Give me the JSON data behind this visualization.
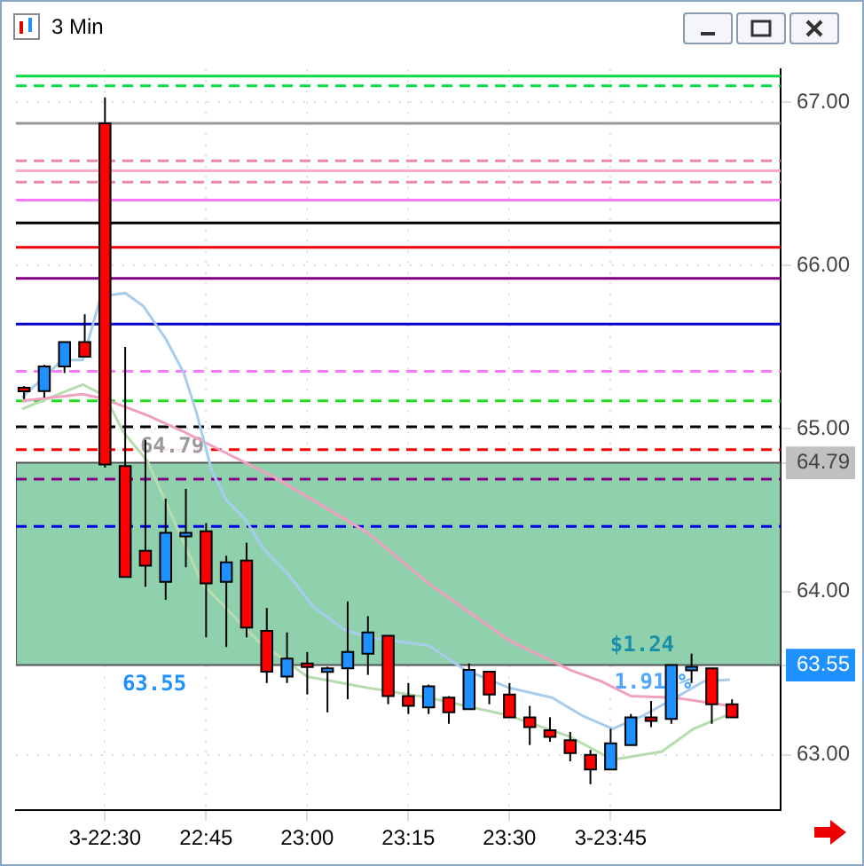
{
  "chart_data": {
    "type": "candlestick",
    "title": "3 Min",
    "x": [
      22.3,
      22.35,
      22.4,
      22.45,
      22.5,
      22.55,
      22.6,
      22.65,
      22.7,
      22.75,
      22.8,
      22.85,
      22.9,
      22.95,
      23,
      23.05,
      23.1,
      23.15,
      23.2,
      23.25,
      23.3,
      23.35,
      23.4,
      23.45,
      23.5,
      23.55,
      23.6,
      23.65,
      23.7,
      23.75,
      23.8,
      23.85,
      23.9,
      23.95,
      24,
      24.05
    ],
    "ohlc": [
      [
        65.25,
        65.26,
        65.18,
        65.23
      ],
      [
        65.23,
        65.39,
        65.19,
        65.38
      ],
      [
        65.38,
        65.53,
        65.34,
        65.53
      ],
      [
        65.53,
        65.7,
        65.44,
        65.44
      ],
      [
        66.87,
        67.03,
        64.76,
        64.78
      ],
      [
        64.77,
        65.5,
        64.09,
        64.09
      ],
      [
        64.25,
        64.93,
        64.03,
        64.16
      ],
      [
        64.06,
        64.57,
        63.95,
        64.36
      ],
      [
        64.35,
        64.63,
        64.15,
        64.36
      ],
      [
        64.37,
        64.42,
        63.72,
        64.05
      ],
      [
        64.06,
        64.22,
        63.66,
        64.18
      ],
      [
        64.19,
        64.3,
        63.72,
        63.78
      ],
      [
        63.76,
        63.9,
        63.44,
        63.51
      ],
      [
        63.48,
        63.75,
        63.44,
        63.59
      ],
      [
        63.56,
        63.63,
        63.37,
        63.54
      ],
      [
        63.51,
        63.54,
        63.26,
        63.53
      ],
      [
        63.53,
        63.94,
        63.34,
        63.63
      ],
      [
        63.62,
        63.85,
        63.49,
        63.75
      ],
      [
        63.73,
        63.73,
        63.31,
        63.36
      ],
      [
        63.36,
        63.44,
        63.25,
        63.3
      ],
      [
        63.29,
        63.43,
        63.25,
        63.42
      ],
      [
        63.35,
        63.36,
        63.19,
        63.26
      ],
      [
        63.28,
        63.56,
        63.28,
        63.52
      ],
      [
        63.51,
        63.51,
        63.31,
        63.37
      ],
      [
        63.37,
        63.44,
        63.23,
        63.23
      ],
      [
        63.23,
        63.3,
        63.06,
        63.17
      ],
      [
        63.15,
        63.23,
        63.08,
        63.11
      ],
      [
        63.09,
        63.14,
        62.96,
        63.01
      ],
      [
        63.0,
        63.03,
        62.82,
        62.91
      ],
      [
        62.91,
        63.16,
        62.91,
        63.07
      ],
      [
        63.06,
        63.25,
        63.06,
        63.23
      ],
      [
        63.23,
        63.33,
        63.17,
        63.22
      ],
      [
        63.22,
        63.55,
        63.19,
        63.55
      ],
      [
        63.53,
        63.62,
        63.44,
        63.54
      ],
      [
        63.53,
        63.53,
        63.19,
        63.31
      ],
      [
        63.31,
        63.34,
        63.23,
        63.23
      ]
    ],
    "colors": [
      "#ff0000",
      "#1e90ff",
      "#1e90ff",
      "#ff0000",
      "#ff0000",
      "#ff0000",
      "#ff0000",
      "#1e90ff",
      "#1e90ff",
      "#ff0000",
      "#1e90ff",
      "#ff0000",
      "#ff0000",
      "#1e90ff",
      "#ff0000",
      "#1e90ff",
      "#1e90ff",
      "#1e90ff",
      "#ff0000",
      "#ff0000",
      "#1e90ff",
      "#ff0000",
      "#1e90ff",
      "#ff0000",
      "#ff0000",
      "#ff0000",
      "#ff0000",
      "#ff0000",
      "#ff0000",
      "#1e90ff",
      "#1e90ff",
      "#ff0000",
      "#1e90ff",
      "#1e90ff",
      "#ff0000",
      "#ff0000"
    ],
    "series": [
      {
        "type": "line",
        "color": "#a8cdec",
        "x": [
          22.295,
          22.395,
          22.445,
          22.49,
          22.55,
          22.595,
          22.65,
          22.695,
          22.727,
          22.764,
          22.8,
          22.845,
          22.89,
          22.955,
          23.014,
          23.09,
          23.15,
          23.3,
          23.39,
          23.5,
          23.605,
          23.68,
          23.755,
          23.83,
          23.91,
          23.98,
          24.045
        ],
        "values": [
          65.19,
          65.42,
          65.42,
          65.81,
          65.83,
          65.75,
          65.55,
          65.34,
          65.09,
          64.74,
          64.56,
          64.45,
          64.27,
          64.1,
          63.91,
          63.77,
          63.72,
          63.67,
          63.52,
          63.41,
          63.35,
          63.24,
          63.16,
          63.24,
          63.35,
          63.45,
          63.46
        ]
      },
      {
        "type": "line",
        "color": "#f0a0c0",
        "x": [
          22.295,
          22.445,
          22.5,
          22.605,
          22.695,
          22.92,
          23.15,
          23.3,
          23.5,
          23.65,
          23.727,
          23.8,
          23.91,
          24.045
        ],
        "values": [
          65.17,
          65.21,
          65.18,
          65.08,
          64.98,
          64.7,
          64.36,
          64.05,
          63.7,
          63.52,
          63.45,
          63.36,
          63.35,
          63.3
        ]
      },
      {
        "type": "line",
        "color": "#b8dcb0",
        "x": [
          22.295,
          22.445,
          22.5,
          22.545,
          22.605,
          22.74,
          22.877,
          23,
          23.15,
          23.3,
          23.5,
          23.65,
          23.755,
          23.877,
          23.955,
          24.045
        ],
        "values": [
          65.12,
          65.27,
          65.2,
          64.98,
          64.8,
          64.05,
          63.7,
          63.48,
          63.41,
          63.35,
          63.24,
          63.11,
          62.97,
          63.02,
          63.16,
          63.25
        ]
      }
    ],
    "ref_lines": [
      {
        "axis": "y",
        "value": 67.16,
        "color": "#00dd44",
        "line_style": "solid"
      },
      {
        "axis": "y",
        "value": 67.1,
        "color": "#00dd44",
        "line_style": "dashed"
      },
      {
        "axis": "y",
        "value": 66.87,
        "color": "#999999",
        "line_style": "solid"
      },
      {
        "axis": "y",
        "value": 66.64,
        "color": "#ee88aa",
        "line_style": "dashed"
      },
      {
        "axis": "y",
        "value": 66.58,
        "color": "#ffaacc",
        "line_style": "solid"
      },
      {
        "axis": "y",
        "value": 66.51,
        "color": "#ee88aa",
        "line_style": "dashed"
      },
      {
        "axis": "y",
        "value": 66.4,
        "color": "#ff77ff",
        "line_style": "solid"
      },
      {
        "axis": "y",
        "value": 66.26,
        "color": "#000000",
        "line_style": "solid"
      },
      {
        "axis": "y",
        "value": 66.11,
        "color": "#ee0000",
        "line_style": "solid"
      },
      {
        "axis": "y",
        "value": 65.92,
        "color": "#800080",
        "line_style": "solid"
      },
      {
        "axis": "y",
        "value": 65.64,
        "color": "#0000cc",
        "line_style": "solid"
      },
      {
        "axis": "y",
        "value": 65.35,
        "color": "#ff77ff",
        "line_style": "dashed"
      },
      {
        "axis": "y",
        "value": 65.17,
        "color": "#22dd22",
        "line_style": "dashed"
      },
      {
        "axis": "y",
        "value": 65.01,
        "color": "#000000",
        "line_style": "dashed"
      },
      {
        "axis": "y",
        "value": 64.87,
        "color": "#ff0000",
        "line_style": "dashed"
      },
      {
        "axis": "y",
        "value": 64.69,
        "color": "#800080",
        "line_style": "dashed"
      },
      {
        "axis": "y",
        "value": 64.4,
        "color": "#0000ee",
        "line_style": "dashed"
      }
    ],
    "bands": [
      {
        "axis": "y",
        "from": 63.55,
        "to": 64.79,
        "color": "#8fd1ad"
      }
    ],
    "annotations": [
      "64.79",
      "63.55",
      "$1.24",
      "1.91 %"
    ],
    "xlim": [
      22.28,
      24.17
    ],
    "xticks": [
      {
        "value": 22.5,
        "label": "3-22:30"
      },
      {
        "value": 22.75,
        "label": "22:45"
      },
      {
        "value": 23,
        "label": "23:00"
      },
      {
        "value": 23.25,
        "label": "23:15"
      },
      {
        "value": 23.5,
        "label": "23:30"
      },
      {
        "value": 23.75,
        "label": "3-23:45"
      }
    ],
    "ylim": [
      62.66,
      67.2
    ],
    "yticks": [
      {
        "value": 63,
        "label": "63.00"
      },
      {
        "value": 63.55,
        "label": "63.55"
      },
      {
        "value": 64,
        "label": "64.00"
      },
      {
        "value": 64.79,
        "label": "64.79"
      },
      {
        "value": 65,
        "label": "65.00"
      },
      {
        "value": 66,
        "label": "66.00"
      },
      {
        "value": 67,
        "label": "67.00"
      }
    ],
    "grid": true,
    "legend": false,
    "marker": "none"
  }
}
